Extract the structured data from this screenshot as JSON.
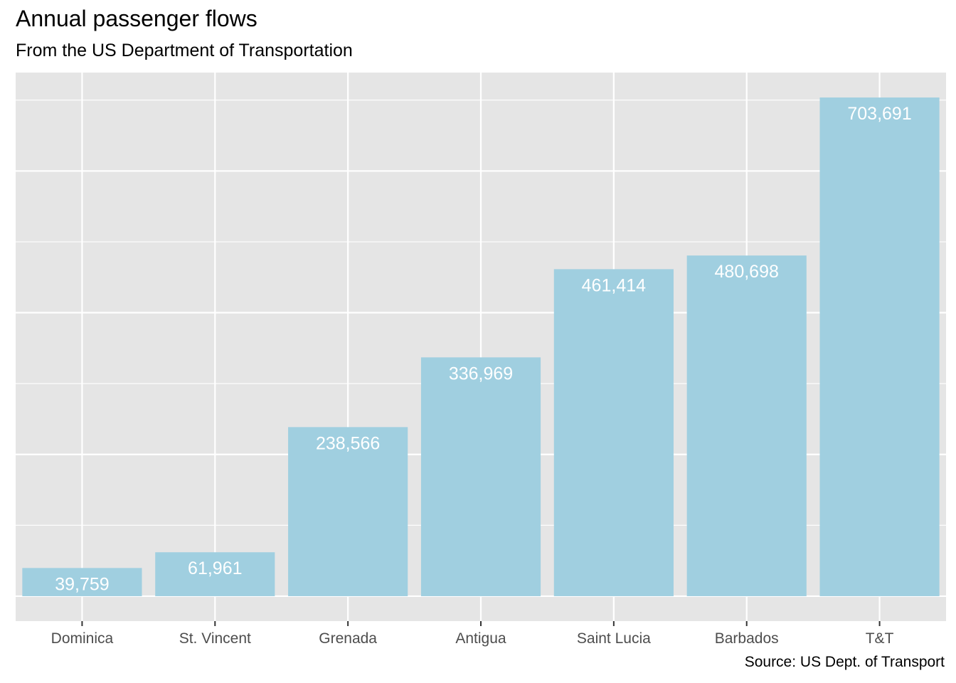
{
  "colors": {
    "panel": "#e5e5e5",
    "grid": "#ffffff",
    "bar": "#a0cfe0",
    "label": "#ffffff",
    "tick_text": "#4d4d4d",
    "tick_mark": "#333333"
  },
  "chart_data": {
    "type": "bar",
    "title": "Annual passenger flows",
    "subtitle": "From the US Department of Transportation",
    "caption": "Source: US Dept. of Transport",
    "xlabel": "",
    "ylabel": "",
    "categories": [
      "Dominica",
      "St. Vincent",
      "Grenada",
      "Antigua",
      "Saint Lucia",
      "Barbados",
      "T&T"
    ],
    "values": [
      39759,
      61961,
      238566,
      336969,
      461414,
      480698,
      703691
    ],
    "data_labels": [
      "39,759",
      "61,961",
      "238,566",
      "336,969",
      "461,414",
      "480,698",
      "703,691"
    ],
    "ylim": [
      -35185,
      738876
    ],
    "y_axis_labels_shown": false,
    "grid": true,
    "legend": "none"
  }
}
